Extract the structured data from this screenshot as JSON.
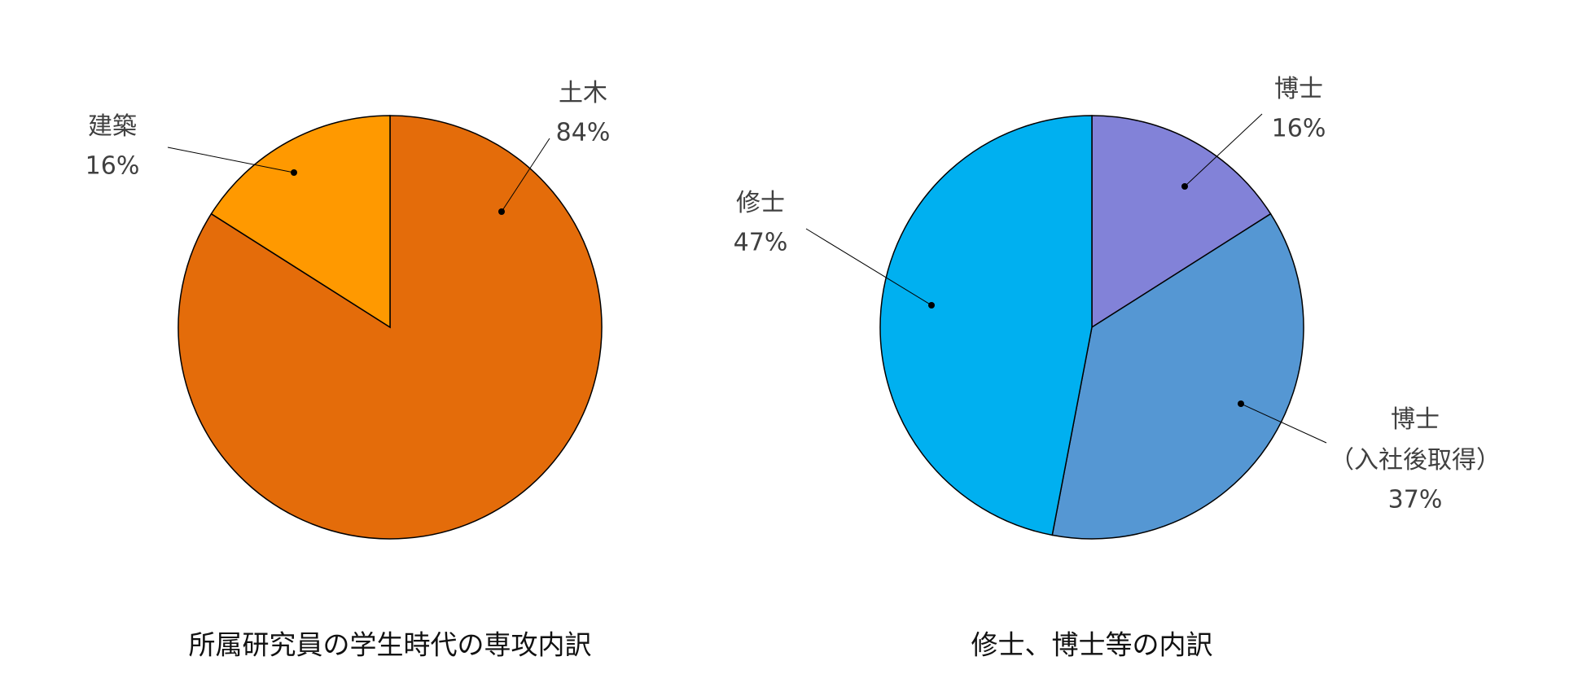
{
  "chart_data": [
    {
      "type": "pie",
      "title": "所属研究員の学生時代の専攻内訳",
      "categories": [
        "土木",
        "建築"
      ],
      "values": [
        84,
        16
      ],
      "value_labels": [
        "84%",
        "16%"
      ],
      "colors": [
        "#e46c0a",
        "#ff9900"
      ]
    },
    {
      "type": "pie",
      "title": "修士、博士等の内訳",
      "categories": [
        "博士",
        "博士\n（入社後取得）",
        "修士"
      ],
      "values": [
        16,
        37,
        47
      ],
      "value_labels": [
        "16%",
        "37%",
        "47%"
      ],
      "colors": [
        "#8282d8",
        "#5597d3",
        "#00b0f0"
      ]
    }
  ]
}
